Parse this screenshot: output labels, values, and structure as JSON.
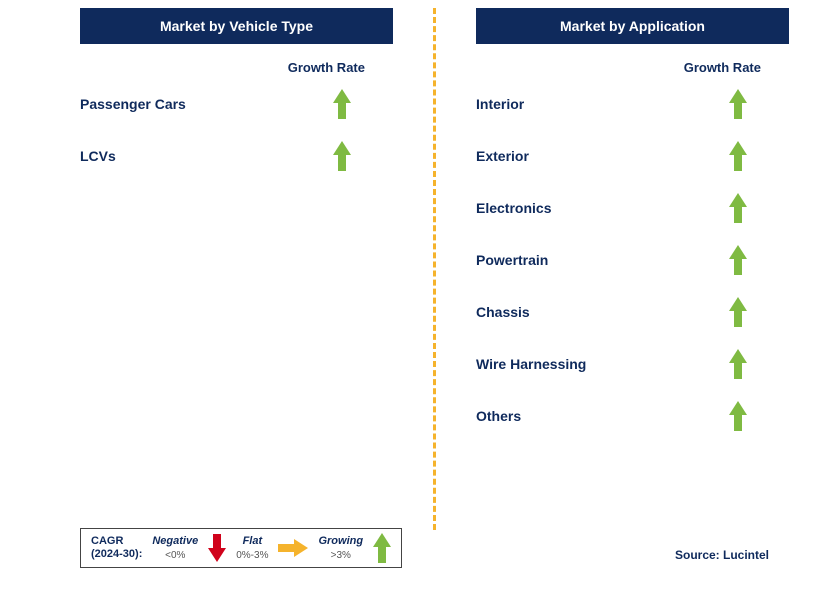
{
  "colors": {
    "header_bg": "#0f2a5c",
    "text": "#0f2a5c",
    "arrow_up": "#7fba42",
    "arrow_down": "#d0021b",
    "arrow_flat": "#f5b32c",
    "divider": "#f5b32c",
    "background": "#ffffff"
  },
  "left_panel": {
    "title": "Market by Vehicle Type",
    "column_head": "Growth Rate",
    "rows": [
      {
        "label": "Passenger Cars",
        "trend": "up"
      },
      {
        "label": "LCVs",
        "trend": "up"
      }
    ]
  },
  "right_panel": {
    "title": "Market by Application",
    "column_head": "Growth Rate",
    "rows": [
      {
        "label": "Interior",
        "trend": "up"
      },
      {
        "label": "Exterior",
        "trend": "up"
      },
      {
        "label": "Electronics",
        "trend": "up"
      },
      {
        "label": "Powertrain",
        "trend": "up"
      },
      {
        "label": "Chassis",
        "trend": "up"
      },
      {
        "label": "Wire Harnessing",
        "trend": "up"
      },
      {
        "label": "Others",
        "trend": "up"
      }
    ]
  },
  "legend": {
    "title_line1": "CAGR",
    "title_line2": "(2024-30):",
    "negative": {
      "label": "Negative",
      "sub": "<0%"
    },
    "flat": {
      "label": "Flat",
      "sub": "0%-3%"
    },
    "growing": {
      "label": "Growing",
      "sub": ">3%"
    }
  },
  "source": "Source: Lucintel"
}
